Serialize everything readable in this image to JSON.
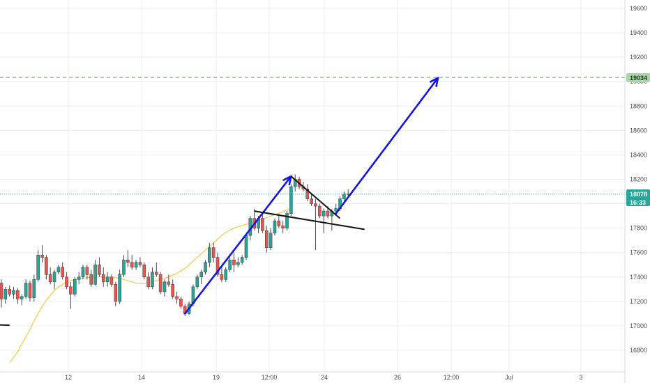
{
  "colors": {
    "background": "#ffffff",
    "grid": "#e8eef1",
    "up_body": "#26a69a",
    "down_body": "#ef5350",
    "wick": "#4a4a4a",
    "moving_average": "#f6c945",
    "target_line": "#7cc47f",
    "target_badge": "#a9d6a6",
    "price_line": "#26a69a",
    "badge_teal": "#26a69a",
    "arrow": "#1414e0",
    "trendline": "#111111"
  },
  "chart_data": {
    "type": "candlestick",
    "title": "",
    "xlabel": "",
    "ylabel": "",
    "ylim": [
      16600,
      19700
    ],
    "x_tick_labels": [
      "12",
      "14",
      "19",
      "12:00",
      "24",
      "26",
      "12:00",
      "Jul",
      "3"
    ],
    "y_tick_labels": [
      "19600",
      "19400",
      "19200",
      "19000",
      "18800",
      "18600",
      "18400",
      "18200",
      "18000",
      "17800",
      "17600",
      "17400",
      "17200",
      "17000",
      "16800"
    ],
    "last_price": {
      "value": 18078,
      "label": "18078",
      "countdown": "16:33"
    },
    "target_level": {
      "value": 19034,
      "label": "19034"
    },
    "grid": true,
    "candles": [
      [
        17350,
        17380,
        17150,
        17220
      ],
      [
        17220,
        17320,
        17180,
        17300
      ],
      [
        17300,
        17330,
        17240,
        17260
      ],
      [
        17260,
        17320,
        17220,
        17290
      ],
      [
        17290,
        17310,
        17180,
        17220
      ],
      [
        17220,
        17260,
        17170,
        17240
      ],
      [
        17240,
        17380,
        17220,
        17350
      ],
      [
        17350,
        17370,
        17200,
        17230
      ],
      [
        17230,
        17420,
        17200,
        17380
      ],
      [
        17380,
        17620,
        17360,
        17580
      ],
      [
        17580,
        17660,
        17520,
        17560
      ],
      [
        17560,
        17580,
        17380,
        17420
      ],
      [
        17420,
        17480,
        17340,
        17360
      ],
      [
        17360,
        17460,
        17300,
        17440
      ],
      [
        17440,
        17500,
        17420,
        17480
      ],
      [
        17480,
        17520,
        17380,
        17400
      ],
      [
        17400,
        17440,
        17300,
        17320
      ],
      [
        17320,
        17360,
        17140,
        17260
      ],
      [
        17260,
        17400,
        17240,
        17380
      ],
      [
        17380,
        17440,
        17340,
        17400
      ],
      [
        17400,
        17500,
        17380,
        17480
      ],
      [
        17480,
        17500,
        17380,
        17420
      ],
      [
        17420,
        17460,
        17320,
        17340
      ],
      [
        17340,
        17540,
        17330,
        17500
      ],
      [
        17500,
        17560,
        17400,
        17420
      ],
      [
        17420,
        17480,
        17320,
        17360
      ],
      [
        17360,
        17440,
        17320,
        17400
      ],
      [
        17400,
        17420,
        17320,
        17340
      ],
      [
        17340,
        17360,
        17160,
        17200
      ],
      [
        17200,
        17460,
        17180,
        17420
      ],
      [
        17420,
        17580,
        17400,
        17540
      ],
      [
        17540,
        17620,
        17480,
        17520
      ],
      [
        17520,
        17580,
        17460,
        17480
      ],
      [
        17480,
        17540,
        17460,
        17520
      ],
      [
        17520,
        17560,
        17480,
        17500
      ],
      [
        17500,
        17520,
        17380,
        17400
      ],
      [
        17400,
        17440,
        17300,
        17320
      ],
      [
        17320,
        17480,
        17300,
        17440
      ],
      [
        17440,
        17520,
        17400,
        17420
      ],
      [
        17420,
        17440,
        17260,
        17280
      ],
      [
        17280,
        17380,
        17240,
        17360
      ],
      [
        17360,
        17420,
        17320,
        17340
      ],
      [
        17340,
        17380,
        17220,
        17240
      ],
      [
        17240,
        17280,
        17180,
        17220
      ],
      [
        17220,
        17240,
        17140,
        17160
      ],
      [
        17160,
        17180,
        17080,
        17100
      ],
      [
        17100,
        17200,
        17090,
        17180
      ],
      [
        17180,
        17340,
        17160,
        17320
      ],
      [
        17320,
        17420,
        17300,
        17400
      ],
      [
        17400,
        17460,
        17340,
        17440
      ],
      [
        17440,
        17540,
        17420,
        17520
      ],
      [
        17520,
        17680,
        17480,
        17640
      ],
      [
        17640,
        17680,
        17520,
        17560
      ],
      [
        17560,
        17600,
        17400,
        17420
      ],
      [
        17420,
        17480,
        17360,
        17380
      ],
      [
        17380,
        17480,
        17360,
        17460
      ],
      [
        17460,
        17560,
        17440,
        17540
      ],
      [
        17540,
        17600,
        17440,
        17500
      ],
      [
        17500,
        17560,
        17480,
        17520
      ],
      [
        17520,
        17580,
        17500,
        17560
      ],
      [
        17560,
        17760,
        17540,
        17740
      ],
      [
        17740,
        17900,
        17700,
        17880
      ],
      [
        17880,
        17960,
        17780,
        17800
      ],
      [
        17800,
        17900,
        17760,
        17880
      ],
      [
        17880,
        17920,
        17760,
        17780
      ],
      [
        17780,
        17820,
        17600,
        17640
      ],
      [
        17640,
        17800,
        17620,
        17760
      ],
      [
        17760,
        17880,
        17740,
        17860
      ],
      [
        17860,
        17920,
        17800,
        17820
      ],
      [
        17820,
        17860,
        17760,
        17800
      ],
      [
        17800,
        17940,
        17780,
        17920
      ],
      [
        17920,
        18160,
        17900,
        18140
      ],
      [
        18140,
        18240,
        18100,
        18200
      ],
      [
        18200,
        18220,
        18120,
        18140
      ],
      [
        18140,
        18180,
        18100,
        18120
      ],
      [
        18120,
        18160,
        18020,
        18040
      ],
      [
        18040,
        18080,
        17980,
        18000
      ],
      [
        18000,
        18040,
        17620,
        17980
      ],
      [
        17980,
        18000,
        17880,
        17900
      ],
      [
        17900,
        17960,
        17760,
        17940
      ],
      [
        17940,
        17980,
        17880,
        17900
      ],
      [
        17900,
        17960,
        17780,
        17940
      ],
      [
        17940,
        18000,
        17900,
        17960
      ],
      [
        17960,
        18060,
        17940,
        18040
      ],
      [
        18040,
        18100,
        18020,
        18080
      ],
      [
        18080,
        18120,
        18060,
        18078
      ]
    ],
    "moving_average": [
      16700,
      16740,
      16790,
      16850,
      16910,
      16970,
      17040,
      17100,
      17160,
      17210,
      17250,
      17290,
      17320,
      17340,
      17360,
      17370,
      17380,
      17385,
      17390,
      17395,
      17398,
      17400,
      17402,
      17400,
      17398,
      17396,
      17394,
      17390,
      17380,
      17370,
      17360,
      17350,
      17345,
      17345,
      17350,
      17360,
      17370,
      17380,
      17390,
      17400,
      17415,
      17430,
      17450,
      17470,
      17500,
      17530,
      17560,
      17590,
      17620,
      17650,
      17680,
      17710,
      17740,
      17765,
      17785,
      17800,
      17812,
      17822,
      17832,
      17842,
      17850,
      17860,
      17872,
      17885,
      17898,
      17910,
      17922,
      17935,
      17948,
      17960
    ],
    "annotations": {
      "arrows": [
        {
          "from": [
            45,
            17100
          ],
          "to": [
            71,
            18225
          ]
        },
        {
          "from": [
            82,
            17920
          ],
          "to": [
            107,
            19030
          ]
        }
      ],
      "trendlines": [
        {
          "from": [
            71,
            18225
          ],
          "to": [
            83,
            17880
          ]
        },
        {
          "from": [
            62,
            17940
          ],
          "to": [
            89,
            17790
          ]
        },
        {
          "from": [
            -3,
            17010
          ],
          "to": [
            2,
            17005
          ]
        }
      ]
    }
  }
}
